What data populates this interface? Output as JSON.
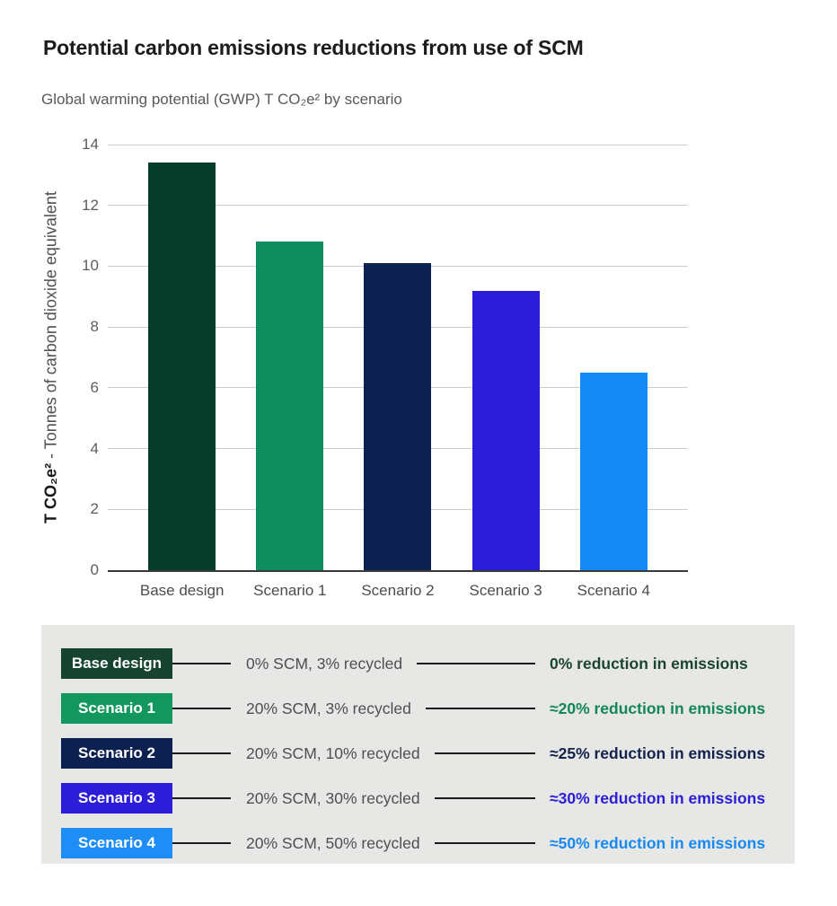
{
  "chart_data": {
    "type": "bar",
    "title": "Potential carbon emissions reductions from use of SCM",
    "subtitle": "Global warming potential (GWP) T CO₂e² by scenario",
    "categories": [
      "Base design",
      "Scenario 1",
      "Scenario 2",
      "Scenario 3",
      "Scenario 4"
    ],
    "values": [
      13.4,
      10.8,
      10.1,
      9.2,
      6.5
    ],
    "bar_colors": [
      "#073c2b",
      "#0f8c60",
      "#0d2150",
      "#2b1dd8",
      "#1489f6"
    ],
    "ylabel_bold": "T CO₂e²",
    "ylabel_rest": " - Tonnes of carbon dioxide equivalent",
    "yticks": [
      14,
      12,
      10,
      8,
      6,
      4,
      2,
      0
    ],
    "ylim": [
      0,
      14
    ],
    "grid": true,
    "legend_position": "bottom-panel"
  },
  "legend": {
    "rows": [
      {
        "label": "Base design",
        "badge_color": "#174431",
        "spec": "0% SCM, 3% recycled",
        "result": "0% reduction in emissions",
        "result_color": "#1b4433"
      },
      {
        "label": "Scenario 1",
        "badge_color": "#12975f",
        "spec": "20% SCM, 3% recycled",
        "result": "≈20% reduction in emissions",
        "result_color": "#12875b"
      },
      {
        "label": "Scenario 2",
        "badge_color": "#0d2150",
        "spec": "20% SCM, 10% recycled",
        "result": "≈25% reduction in emissions",
        "result_color": "#13234e"
      },
      {
        "label": "Scenario 3",
        "badge_color": "#2b1dd8",
        "spec": "20% SCM, 30% recycled",
        "result": "≈30% reduction in emissions",
        "result_color": "#2c1ed6"
      },
      {
        "label": "Scenario 4",
        "badge_color": "#1e8ef6",
        "spec": "20% SCM, 50% recycled",
        "result": "≈50% reduction in emissions",
        "result_color": "#1789f1"
      }
    ]
  }
}
